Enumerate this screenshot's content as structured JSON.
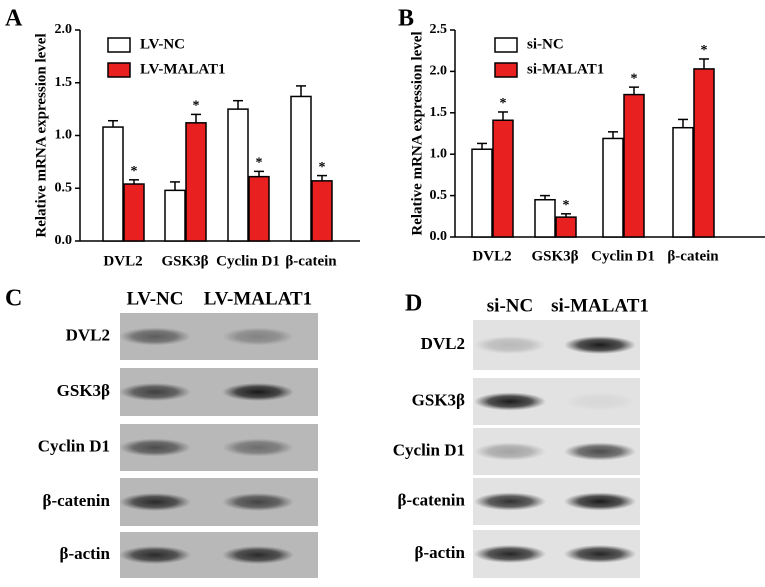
{
  "chart_data": [
    {
      "type": "bar",
      "panel_label": "A",
      "ylabel": "Relative mRNA expression level",
      "categories": [
        "DVL2",
        "GSK3β",
        "Cyclin D1",
        "β-catein"
      ],
      "series": [
        {
          "name": "LV-NC",
          "color": "#ffffff",
          "values": [
            1.08,
            0.48,
            1.25,
            1.37
          ],
          "errors": [
            0.06,
            0.08,
            0.08,
            0.1
          ]
        },
        {
          "name": "LV-MALAT1",
          "color": "#e82020",
          "values": [
            0.54,
            1.12,
            0.61,
            0.57
          ],
          "errors": [
            0.04,
            0.08,
            0.05,
            0.05
          ],
          "annotation": "*"
        }
      ],
      "ylim": [
        0,
        2
      ],
      "yticks": [
        {
          "value": 0,
          "label": "0.0"
        },
        0.5,
        {
          "value": 1,
          "label": "1.0"
        },
        1.5,
        {
          "value": 2,
          "label": "2.0"
        }
      ],
      "legend": "top-left"
    },
    {
      "type": "bar",
      "panel_label": "B",
      "ylabel": "Relative mRNA expression level",
      "categories": [
        "DVL2",
        "GSK3β",
        "Cyclin D1",
        "β-catein"
      ],
      "series": [
        {
          "name": "si-NC",
          "color": "#ffffff",
          "values": [
            1.06,
            0.45,
            1.19,
            1.32
          ],
          "errors": [
            0.07,
            0.05,
            0.08,
            0.1
          ]
        },
        {
          "name": "si-MALAT1",
          "color": "#e82020",
          "values": [
            1.41,
            0.24,
            1.72,
            2.03
          ],
          "errors": [
            0.1,
            0.04,
            0.09,
            0.12
          ],
          "annotation": "*"
        }
      ],
      "ylim": [
        0,
        2.5
      ],
      "yticks": [
        {
          "value": 0,
          "label": "0.0"
        },
        0.5,
        {
          "value": 1,
          "label": "1.0"
        },
        1.5,
        {
          "value": 2,
          "label": "2.0"
        },
        2.5
      ],
      "legend": "top-left"
    }
  ],
  "blots": [
    {
      "panel_label": "C",
      "lanes": [
        "LV-NC",
        "LV-MALAT1"
      ],
      "rows": [
        "DVL2",
        "GSK3β",
        "Cyclin D1",
        "β-catenin",
        "β-actin"
      ]
    },
    {
      "panel_label": "D",
      "lanes": [
        "si-NC",
        "si-MALAT1"
      ],
      "rows": [
        "DVL2",
        "GSK3β",
        "Cyclin D1",
        "β-catenin",
        "β-actin"
      ]
    }
  ]
}
